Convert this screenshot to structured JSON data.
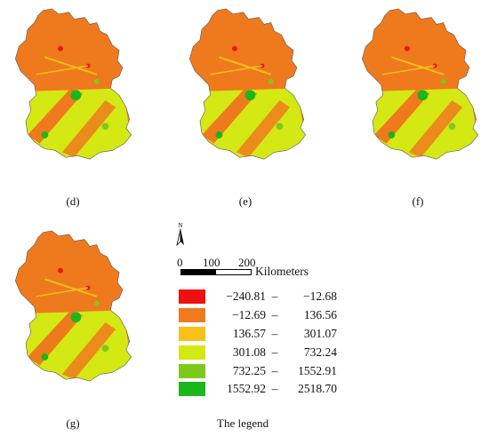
{
  "figure": {
    "panels": [
      {
        "id": "d",
        "label": "(d)"
      },
      {
        "id": "e",
        "label": "(e)"
      },
      {
        "id": "f",
        "label": "(f)"
      },
      {
        "id": "g",
        "label": "(g)"
      }
    ],
    "north_arrow_label": "N",
    "scale_bar": {
      "ticks": [
        "0",
        "100",
        "200"
      ],
      "unit": "Kilometers"
    },
    "legend": {
      "title": "The legend",
      "classes": [
        {
          "low": "−240.81",
          "sep": "–",
          "high": "−12.68",
          "color": "#ee1111"
        },
        {
          "low": "−12.69",
          "sep": "–",
          "high": "136.56",
          "color": "#f07a1e"
        },
        {
          "low": "136.57",
          "sep": "–",
          "high": "301.07",
          "color": "#f7c11a"
        },
        {
          "low": "301.08",
          "sep": "–",
          "high": "732.24",
          "color": "#d4e814"
        },
        {
          "low": "732.25",
          "sep": "–",
          "high": "1552.91",
          "color": "#7ec81c"
        },
        {
          "low": "1552.92",
          "sep": "–",
          "high": "2518.70",
          "color": "#1ab61a"
        }
      ]
    }
  }
}
